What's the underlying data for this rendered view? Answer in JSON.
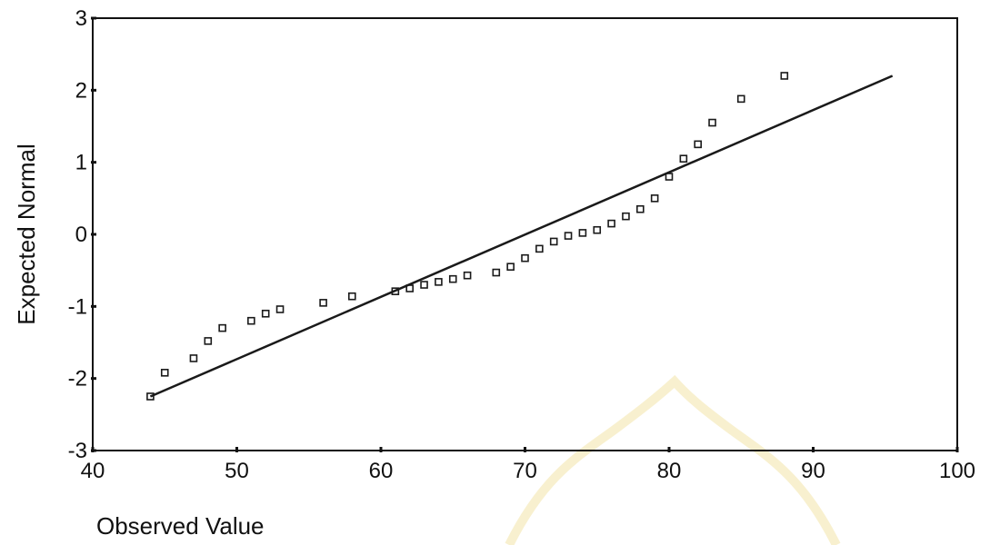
{
  "chart_data": {
    "type": "scatter",
    "title": "",
    "xlabel": "Observed Value",
    "ylabel": "Expected Normal",
    "xlim": [
      40,
      100
    ],
    "ylim": [
      -3,
      3
    ],
    "x_ticks": [
      40,
      50,
      60,
      70,
      80,
      90,
      100
    ],
    "y_ticks": [
      -3,
      -2,
      -1,
      0,
      1,
      2,
      3
    ],
    "grid": false,
    "legend": "none",
    "series": [
      {
        "type": "scatter",
        "marker": "square",
        "points": [
          {
            "x": 44,
            "y": -2.25
          },
          {
            "x": 45,
            "y": -1.92
          },
          {
            "x": 47,
            "y": -1.72
          },
          {
            "x": 48,
            "y": -1.48
          },
          {
            "x": 49,
            "y": -1.3
          },
          {
            "x": 51,
            "y": -1.2
          },
          {
            "x": 52,
            "y": -1.1
          },
          {
            "x": 53,
            "y": -1.04
          },
          {
            "x": 56,
            "y": -0.95
          },
          {
            "x": 58,
            "y": -0.86
          },
          {
            "x": 61,
            "y": -0.79
          },
          {
            "x": 62,
            "y": -0.75
          },
          {
            "x": 63,
            "y": -0.7
          },
          {
            "x": 64,
            "y": -0.66
          },
          {
            "x": 65,
            "y": -0.62
          },
          {
            "x": 66,
            "y": -0.57
          },
          {
            "x": 68,
            "y": -0.53
          },
          {
            "x": 69,
            "y": -0.45
          },
          {
            "x": 70,
            "y": -0.33
          },
          {
            "x": 71,
            "y": -0.2
          },
          {
            "x": 72,
            "y": -0.1
          },
          {
            "x": 73,
            "y": -0.02
          },
          {
            "x": 74,
            "y": 0.02
          },
          {
            "x": 75,
            "y": 0.06
          },
          {
            "x": 76,
            "y": 0.15
          },
          {
            "x": 77,
            "y": 0.25
          },
          {
            "x": 78,
            "y": 0.35
          },
          {
            "x": 79,
            "y": 0.5
          },
          {
            "x": 80,
            "y": 0.8
          },
          {
            "x": 81,
            "y": 1.05
          },
          {
            "x": 82,
            "y": 1.25
          },
          {
            "x": 83,
            "y": 1.55
          },
          {
            "x": 85,
            "y": 1.88
          },
          {
            "x": 88,
            "y": 2.2
          }
        ]
      },
      {
        "type": "line",
        "points": [
          {
            "x": 44,
            "y": -2.25
          },
          {
            "x": 95.5,
            "y": 2.2
          }
        ]
      }
    ],
    "colors": {
      "marks": "#1a1a1a",
      "axis": "#111111",
      "background": "#ffffff"
    }
  }
}
